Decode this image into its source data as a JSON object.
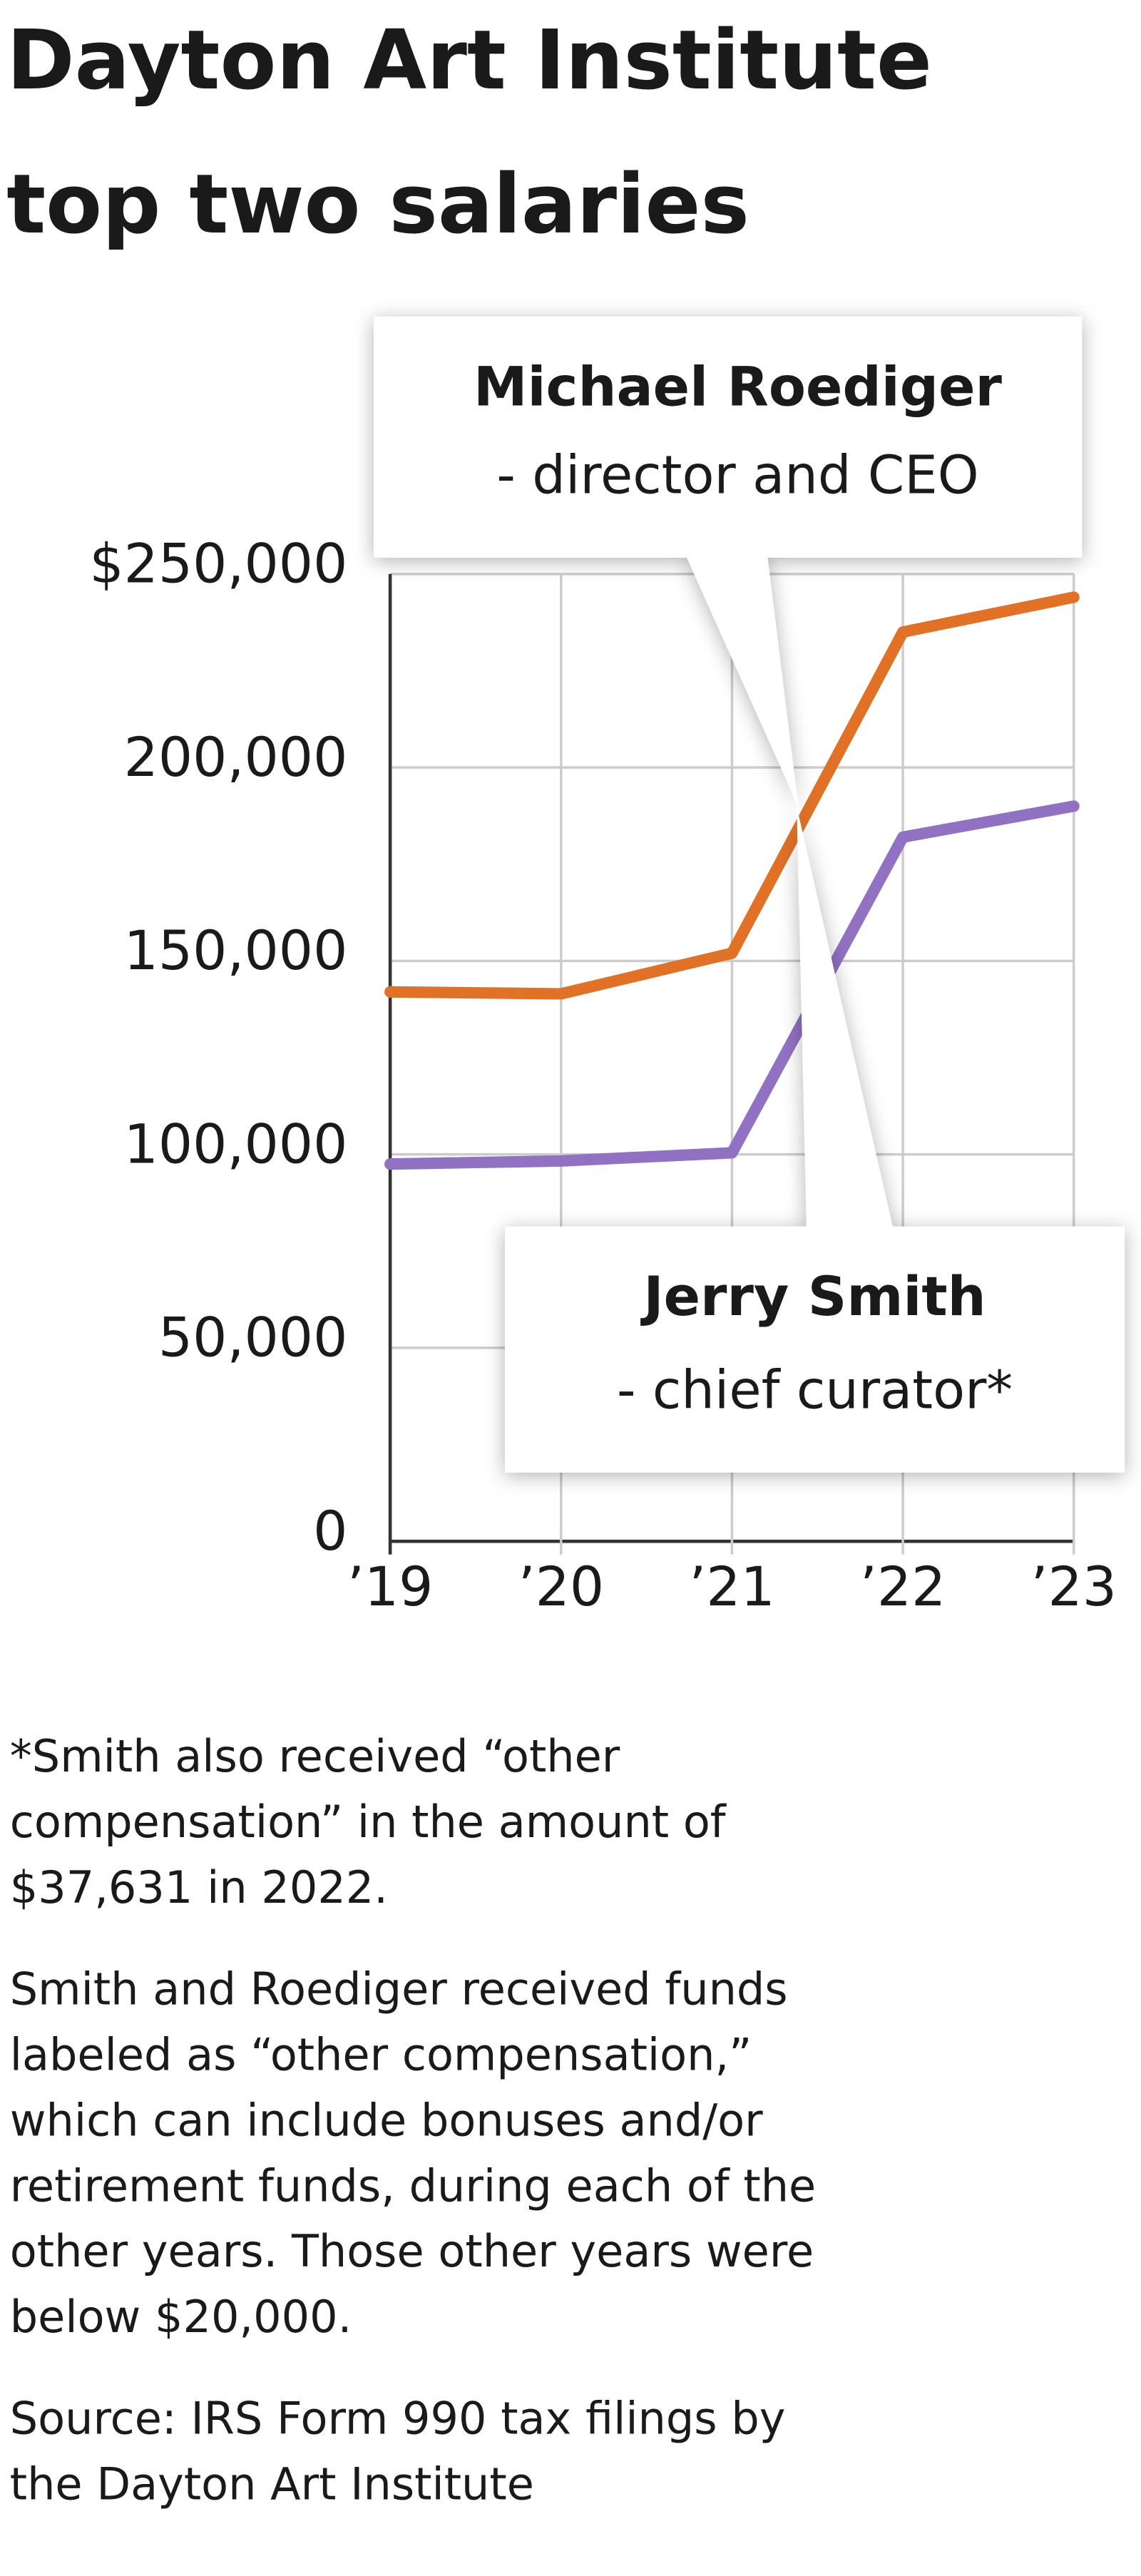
{
  "chart_data": {
    "type": "line",
    "title": [
      "Dayton Art Institute",
      "top two salaries"
    ],
    "categories": [
      "’19",
      "’20",
      "’21",
      "’22",
      "’23"
    ],
    "series": [
      {
        "name": "Michael Roediger",
        "role": "- director and CEO",
        "color": "#e07127",
        "values": [
          142000,
          141500,
          152000,
          235000,
          244000
        ]
      },
      {
        "name": "Jerry Smith",
        "role": "- chief curator*",
        "color": "#9172c2",
        "values": [
          97500,
          98300,
          100400,
          182000,
          190000
        ]
      }
    ],
    "ylim": [
      0,
      250000
    ],
    "yticks": [
      0,
      {
        "value": 50000,
        "label": "50,000"
      },
      {
        "value": 100000,
        "label": "100,000"
      },
      {
        "value": 150000,
        "label": "150,000"
      },
      {
        "value": 200000,
        "label": "200,000"
      },
      {
        "value": 250000,
        "label": "$250,000"
      }
    ],
    "grid": true,
    "notes": [
      [
        "*Smith also received “other",
        "compensation” in the amount of",
        "$37,631 in 2022."
      ],
      [
        "Smith and Roediger received funds",
        "labeled as “other compensation,”",
        "which can include bonuses and/or",
        "retirement funds, during each of the",
        "other years. Those other years were",
        "below $20,000."
      ],
      [
        "Source: IRS Form 990 tax filings by",
        "the Dayton Art Institute"
      ]
    ]
  }
}
